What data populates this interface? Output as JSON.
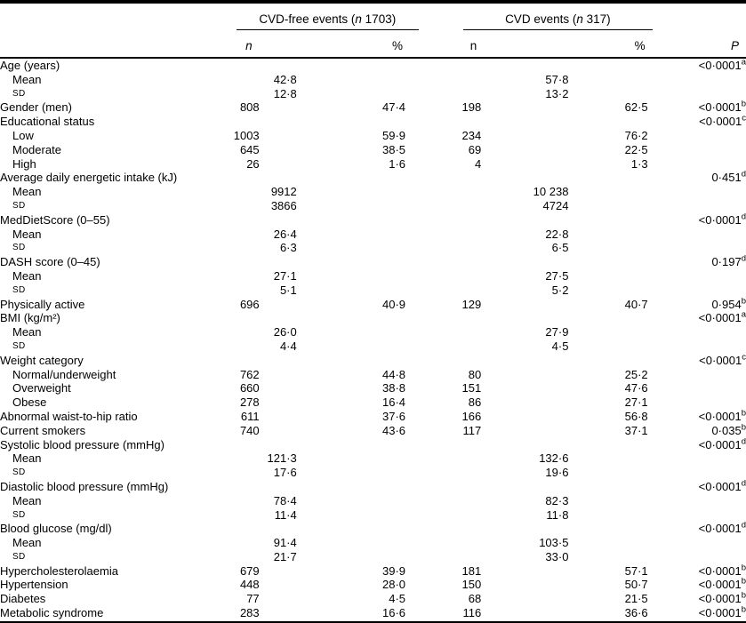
{
  "header": {
    "groups": [
      {
        "pre": "CVD-free events (",
        "n": "n",
        "post": " 1703)"
      },
      {
        "pre": "CVD events (",
        "n": "n",
        "post": " 317)"
      }
    ],
    "sub": {
      "n1": "n",
      "pct1": "%",
      "n2": "n",
      "pct2": "%",
      "p": "P"
    }
  },
  "rows": [
    {
      "label": "Age (years)",
      "p": "<0·0001",
      "sup": "a"
    },
    {
      "label": "Mean",
      "ind": 1,
      "m1": "42·8",
      "m2": "57·8"
    },
    {
      "label": "SD",
      "ind": 1,
      "sc": 1,
      "m1": "12·8",
      "m2": "13·2"
    },
    {
      "label": "Gender (men)",
      "n1": "808",
      "pct1": "47·4",
      "n2": "198",
      "pct2": "62·5",
      "p": "<0·0001",
      "sup": "b"
    },
    {
      "label": "Educational status",
      "p": "<0·0001",
      "sup": "c"
    },
    {
      "label": "Low",
      "ind": 1,
      "n1": "1003",
      "pct1": "59·9",
      "n2": "234",
      "pct2": "76·2"
    },
    {
      "label": "Moderate",
      "ind": 1,
      "n1": "645",
      "pct1": "38·5",
      "n2": "69",
      "pct2": "22·5"
    },
    {
      "label": "High",
      "ind": 1,
      "n1": "26",
      "pct1": "1·6",
      "n2": "4",
      "pct2": "1·3"
    },
    {
      "label": "Average daily energetic intake (kJ)",
      "p": "0·451",
      "sup": "d"
    },
    {
      "label": "Mean",
      "ind": 1,
      "m1": "9912",
      "m2": "10 238"
    },
    {
      "label": "SD",
      "ind": 1,
      "sc": 1,
      "m1": "3866",
      "m2": "4724"
    },
    {
      "label": "MedDietScore (0–55)",
      "p": "<0·0001",
      "sup": "d"
    },
    {
      "label": "Mean",
      "ind": 1,
      "m1": "26·4",
      "m2": "22·8"
    },
    {
      "label": "SD",
      "ind": 1,
      "sc": 1,
      "m1": "6·3",
      "m2": "6·5"
    },
    {
      "label": "DASH score (0–45)",
      "p": "0·197",
      "sup": "d"
    },
    {
      "label": "Mean",
      "ind": 1,
      "m1": "27·1",
      "m2": "27·5"
    },
    {
      "label": "SD",
      "ind": 1,
      "sc": 1,
      "m1": "5·1",
      "m2": "5·2"
    },
    {
      "label": "Physically active",
      "n1": "696",
      "pct1": "40·9",
      "n2": "129",
      "pct2": "40·7",
      "p": "0·954",
      "sup": "b"
    },
    {
      "label": "BMI (kg/m²)",
      "p": "<0·0001",
      "sup": "a"
    },
    {
      "label": "Mean",
      "ind": 1,
      "m1": "26·0",
      "m2": "27·9"
    },
    {
      "label": "SD",
      "ind": 1,
      "sc": 1,
      "m1": "4·4",
      "m2": "4·5"
    },
    {
      "label": "Weight category",
      "p": "<0·0001",
      "sup": "c"
    },
    {
      "label": "Normal/underweight",
      "ind": 1,
      "n1": "762",
      "pct1": "44·8",
      "n2": "80",
      "pct2": "25·2"
    },
    {
      "label": "Overweight",
      "ind": 1,
      "n1": "660",
      "pct1": "38·8",
      "n2": "151",
      "pct2": "47·6"
    },
    {
      "label": "Obese",
      "ind": 1,
      "n1": "278",
      "pct1": "16·4",
      "n2": "86",
      "pct2": "27·1"
    },
    {
      "label": "Abnormal waist-to-hip ratio",
      "n1": "611",
      "pct1": "37·6",
      "n2": "166",
      "pct2": "56·8",
      "p": "<0·0001",
      "sup": "b"
    },
    {
      "label": "Current smokers",
      "n1": "740",
      "pct1": "43·6",
      "n2": "117",
      "pct2": "37·1",
      "p": "0·035",
      "sup": "b"
    },
    {
      "label": "Systolic blood pressure (mmHg)",
      "p": "<0·0001",
      "sup": "d"
    },
    {
      "label": "Mean",
      "ind": 1,
      "m1": "121·3",
      "m2": "132·6"
    },
    {
      "label": "SD",
      "ind": 1,
      "sc": 1,
      "m1": "17·6",
      "m2": "19·6"
    },
    {
      "label": "Diastolic blood pressure (mmHg)",
      "p": "<0·0001",
      "sup": "d"
    },
    {
      "label": "Mean",
      "ind": 1,
      "m1": "78·4",
      "m2": "82·3"
    },
    {
      "label": "SD",
      "ind": 1,
      "sc": 1,
      "m1": "11·4",
      "m2": "11·8"
    },
    {
      "label": "Blood glucose (mg/dl)",
      "p": "<0·0001",
      "sup": "d"
    },
    {
      "label": "Mean",
      "ind": 1,
      "m1": "91·4",
      "m2": "103·5"
    },
    {
      "label": "SD",
      "ind": 1,
      "sc": 1,
      "m1": "21·7",
      "m2": "33·0"
    },
    {
      "label": "Hypercholesterolaemia",
      "n1": "679",
      "pct1": "39·9",
      "n2": "181",
      "pct2": "57·1",
      "p": "<0·0001",
      "sup": "b"
    },
    {
      "label": "Hypertension",
      "n1": "448",
      "pct1": "28·0",
      "n2": "150",
      "pct2": "50·7",
      "p": "<0·0001",
      "sup": "b"
    },
    {
      "label": "Diabetes",
      "n1": "77",
      "pct1": "4·5",
      "n2": "68",
      "pct2": "21·5",
      "p": "<0·0001",
      "sup": "b"
    },
    {
      "label": "Metabolic syndrome",
      "n1": "283",
      "pct1": "16·6",
      "n2": "116",
      "pct2": "36·6",
      "p": "<0·0001",
      "sup": "b"
    }
  ]
}
